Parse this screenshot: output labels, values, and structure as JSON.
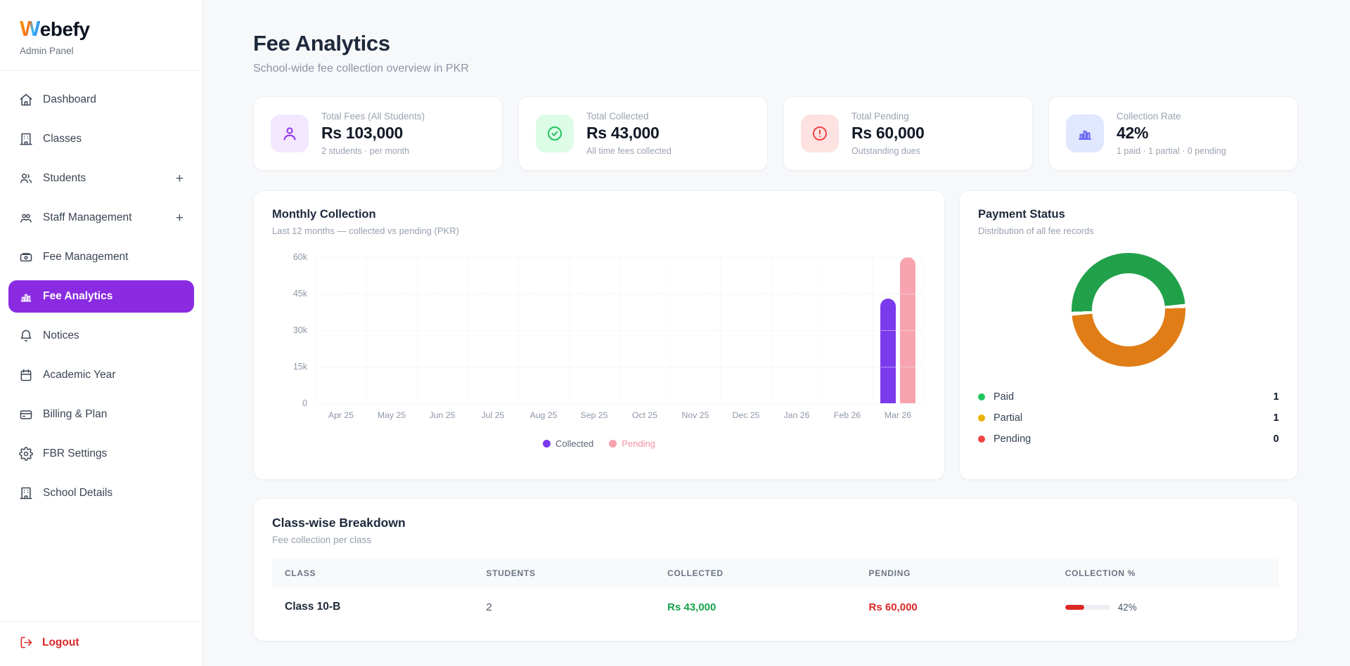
{
  "sidebar": {
    "logo_w": "W",
    "logo_rest": "ebefy",
    "subtitle": "Admin Panel",
    "items": [
      {
        "label": "Dashboard",
        "icon": "home"
      },
      {
        "label": "Classes",
        "icon": "building"
      },
      {
        "label": "Students",
        "icon": "users",
        "expandable": "+"
      },
      {
        "label": "Staff Management",
        "icon": "users-group",
        "expandable": "+"
      },
      {
        "label": "Fee Management",
        "icon": "wallet"
      },
      {
        "label": "Fee Analytics",
        "icon": "bar-chart",
        "active": true
      },
      {
        "label": "Notices",
        "icon": "bell"
      },
      {
        "label": "Academic Year",
        "icon": "calendar"
      },
      {
        "label": "Billing & Plan",
        "icon": "credit-card"
      },
      {
        "label": "FBR Settings",
        "icon": "gear"
      },
      {
        "label": "School Details",
        "icon": "building"
      }
    ],
    "logout_label": "Logout"
  },
  "header": {
    "title": "Fee Analytics",
    "subtitle": "School-wide fee collection overview in PKR"
  },
  "stats": [
    {
      "title": "Total Fees (All Students)",
      "value": "Rs 103,000",
      "sub": "2 students · per month",
      "icon": "user",
      "accent": "#9333ea",
      "accent_bg": "#f3e8ff"
    },
    {
      "title": "Total Collected",
      "value": "Rs 43,000",
      "sub": "All time fees collected",
      "icon": "check-circle",
      "accent": "#22c55e",
      "accent_bg": "#dcfce7"
    },
    {
      "title": "Total Pending",
      "value": "Rs 60,000",
      "sub": "Outstanding dues",
      "icon": "alert-circle",
      "accent": "#ef4444",
      "accent_bg": "#fee2e2"
    },
    {
      "title": "Collection Rate",
      "value": "42%",
      "sub": "1 paid · 1 partial · 0 pending",
      "icon": "bar-chart",
      "accent": "#6366f1",
      "accent_bg": "#e0e7ff"
    }
  ],
  "monthly_chart": {
    "title": "Monthly Collection",
    "subtitle": "Last 12 months — collected vs pending (PKR)",
    "type": "bar",
    "categories": [
      "Apr 25",
      "May 25",
      "Jun 25",
      "Jul 25",
      "Aug 25",
      "Sep 25",
      "Oct 25",
      "Nov 25",
      "Dec 25",
      "Jan 26",
      "Feb 26",
      "Mar 26"
    ],
    "series": [
      {
        "name": "Collected",
        "color": "#7c3aed",
        "label_color": "#5b6474",
        "values": [
          0,
          0,
          0,
          0,
          0,
          0,
          0,
          0,
          0,
          0,
          0,
          43000
        ]
      },
      {
        "name": "Pending",
        "color": "#f8a3ae",
        "label_color": "#f191a0",
        "values": [
          0,
          0,
          0,
          0,
          0,
          0,
          0,
          0,
          0,
          0,
          0,
          60000
        ]
      }
    ],
    "y_ticks": [
      "0",
      "15k",
      "30k",
      "45k",
      "60k"
    ],
    "y_max": 60000
  },
  "payment_status": {
    "title": "Payment Status",
    "subtitle": "Distribution of all fee records",
    "type": "donut",
    "start_angle_deg": 266,
    "segments": [
      {
        "label": "Paid",
        "value": 1,
        "dot_color": "#22c55e",
        "arc_color": "#22a14b"
      },
      {
        "label": "Partial",
        "value": 1,
        "dot_color": "#eab308",
        "arc_color": "#e07d17"
      },
      {
        "label": "Pending",
        "value": 0,
        "dot_color": "#ef4444",
        "arc_color": "#ef4444"
      }
    ]
  },
  "breakdown": {
    "title": "Class-wise Breakdown",
    "subtitle": "Fee collection per class",
    "columns": [
      "Class",
      "Students",
      "Collected",
      "Pending",
      "Collection %"
    ],
    "rows": [
      {
        "class": "Class 10-B",
        "students": "2",
        "collected": "Rs 43,000",
        "pending": "Rs 60,000",
        "collection_pct": 42,
        "collection_label": "42%"
      }
    ]
  },
  "chart_data": [
    {
      "type": "bar",
      "title": "Monthly Collection",
      "subtitle": "Last 12 months — collected vs pending (PKR)",
      "categories": [
        "Apr 25",
        "May 25",
        "Jun 25",
        "Jul 25",
        "Aug 25",
        "Sep 25",
        "Oct 25",
        "Nov 25",
        "Dec 25",
        "Jan 26",
        "Feb 26",
        "Mar 26"
      ],
      "series": [
        {
          "name": "Collected",
          "values": [
            0,
            0,
            0,
            0,
            0,
            0,
            0,
            0,
            0,
            0,
            0,
            43000
          ]
        },
        {
          "name": "Pending",
          "values": [
            0,
            0,
            0,
            0,
            0,
            0,
            0,
            0,
            0,
            0,
            0,
            60000
          ]
        }
      ],
      "ylim": [
        0,
        60000
      ],
      "y_tick_labels": [
        "0",
        "15k",
        "30k",
        "45k",
        "60k"
      ],
      "grid": true,
      "legend_position": "bottom"
    },
    {
      "type": "pie",
      "title": "Payment Status",
      "subtitle": "Distribution of all fee records",
      "labels": [
        "Paid",
        "Partial",
        "Pending"
      ],
      "values": [
        1,
        1,
        0
      ],
      "legend_position": "bottom"
    }
  ]
}
